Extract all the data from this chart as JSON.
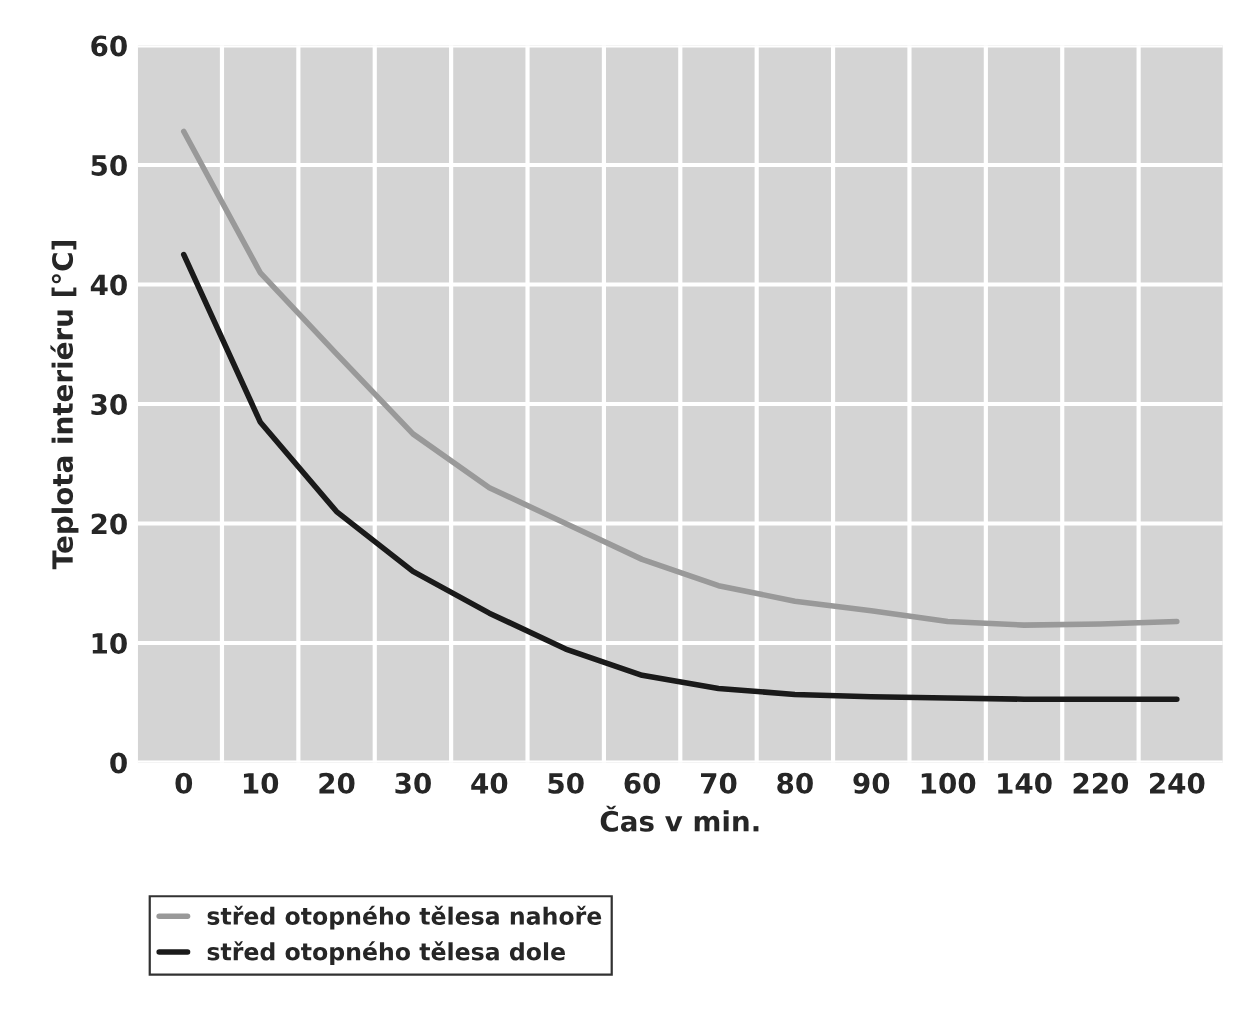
{
  "chart_data": {
    "type": "line",
    "xlabel": "Čas v min.",
    "ylabel": "Teplota interiéru [°C]",
    "categories": [
      "0",
      "10",
      "20",
      "30",
      "40",
      "50",
      "60",
      "70",
      "80",
      "90",
      "100",
      "140",
      "220",
      "240"
    ],
    "series": [
      {
        "name": "střed otopného tělesa nahoře",
        "color": "#999999",
        "values": [
          52.8,
          41,
          34.2,
          27.5,
          23,
          20,
          17,
          14.8,
          13.5,
          12.7,
          11.8,
          11.5,
          11.6,
          11.8
        ]
      },
      {
        "name": "střed otopného tělesa dole",
        "color": "#1a1a1a",
        "values": [
          42.5,
          28.5,
          21,
          16,
          12.5,
          9.5,
          7.3,
          6.2,
          5.7,
          5.5,
          5.4,
          5.3,
          5.3,
          5.3
        ]
      }
    ],
    "ylim": [
      0,
      60
    ],
    "yticks": [
      0,
      10,
      20,
      30,
      40,
      50,
      60
    ],
    "grid": true,
    "legend": "bottom left"
  }
}
